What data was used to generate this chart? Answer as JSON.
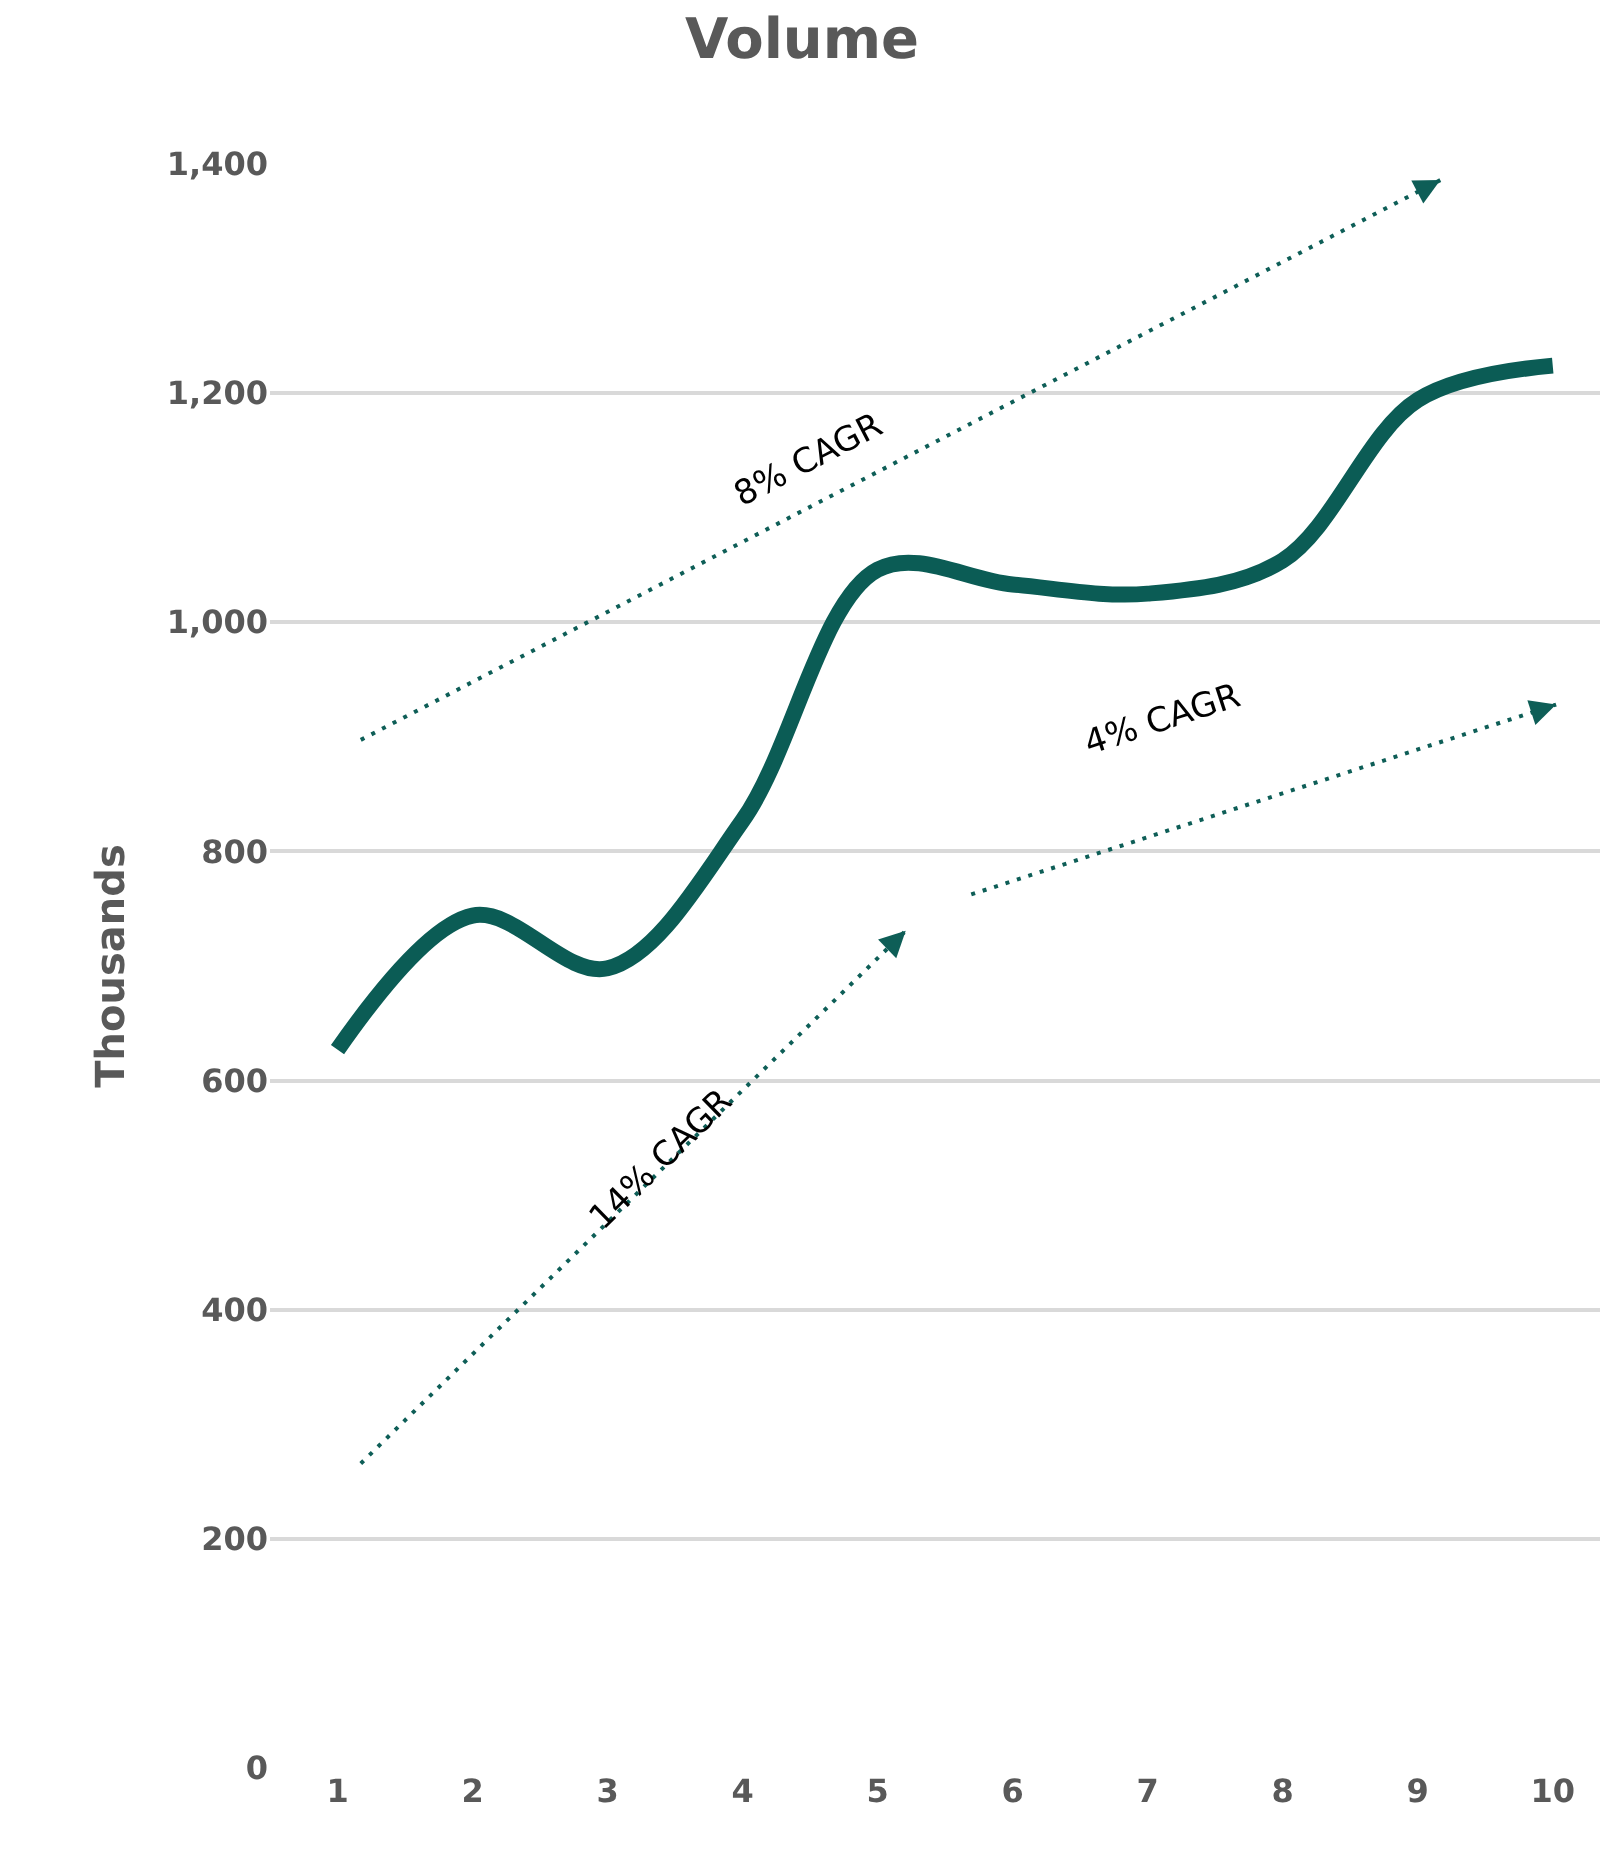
{
  "chart_data": {
    "type": "line",
    "title": "Volume",
    "ylabel": "Thousands",
    "x": [
      1,
      2,
      3,
      4,
      5,
      6,
      7,
      8,
      9,
      10
    ],
    "xlim": [
      0.5,
      10.35
    ],
    "xticks": [
      1,
      2,
      3,
      4,
      5,
      6,
      7,
      8,
      9,
      10
    ],
    "ylim": [
      0,
      1400
    ],
    "yticks": [
      {
        "value": 0,
        "label": "0"
      },
      {
        "value": 200,
        "label": "200"
      },
      {
        "value": 400,
        "label": "400"
      },
      {
        "value": 600,
        "label": "600"
      },
      {
        "value": 800,
        "label": "800"
      },
      {
        "value": 1000,
        "label": "1,000"
      },
      {
        "value": 1200,
        "label": "1,200"
      },
      {
        "value": 1400,
        "label": "1,400"
      }
    ],
    "grid": "y",
    "marker": "none",
    "series": [
      {
        "color": "#0b5c55",
        "values": [
          627,
          744,
          698,
          827,
          1046,
          1033,
          1025,
          1054,
          1194,
          1224
        ]
      }
    ],
    "annotations": [
      "8% CAGR",
      "14% CAGR",
      "4% CAGR"
    ]
  }
}
